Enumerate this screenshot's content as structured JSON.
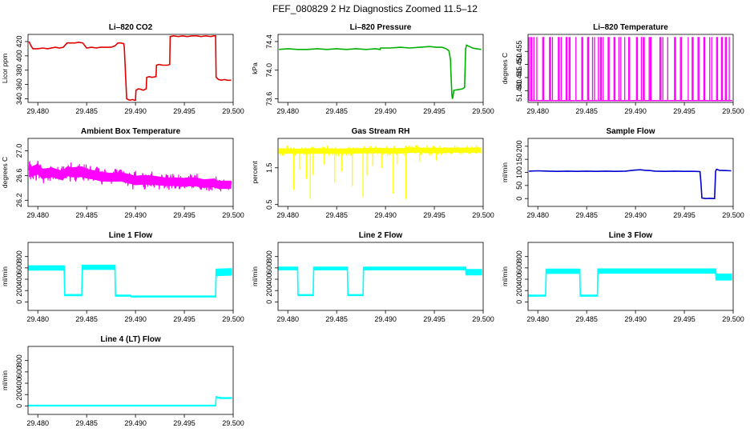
{
  "figure_title": "FEF_080829  2 Hz Diagnostics Zoomed 11.5–12",
  "colors": {
    "red": "#e00000",
    "green": "#00b000",
    "magenta": "#ff00ff",
    "yellow": "#ffff00",
    "blue": "#0000d0",
    "cyan": "#00ffff",
    "frame": "#000000"
  },
  "chart_data": [
    {
      "type": "line",
      "title": "Li–820 CO2",
      "ylabel": "Licor ppm",
      "color": "red",
      "xlim": [
        29.479,
        29.5
      ],
      "ylim": [
        335,
        430
      ],
      "xticks": [
        "29.480",
        "29.485",
        "29.490",
        "29.495",
        "29.500"
      ],
      "yticks": [
        {
          "v": 340,
          "label": "340"
        },
        {
          "v": 360,
          "label": "360"
        },
        {
          "v": 380,
          "label": "380"
        },
        {
          "v": 400,
          "label": "400"
        },
        {
          "v": 420,
          "label": "420"
        }
      ],
      "x": [
        29.4791,
        29.4793,
        29.4795,
        29.48,
        29.4805,
        29.481,
        29.4818,
        29.4822,
        29.4826,
        29.483,
        29.4838,
        29.4842,
        29.4846,
        29.485,
        29.4855,
        29.486,
        29.4864,
        29.4868,
        29.4875,
        29.4879,
        29.4882,
        29.4885,
        29.4888,
        29.48885,
        29.4891,
        29.4894,
        29.4897,
        29.4899,
        29.49,
        29.49005,
        29.4903,
        29.4906,
        29.4908,
        29.4911,
        29.49115,
        29.4914,
        29.4917,
        29.4921,
        29.49215,
        29.4924,
        29.4928,
        29.4933,
        29.4935,
        29.49355,
        29.4939,
        29.4944,
        29.4948,
        29.4953,
        29.4958,
        29.4963,
        29.4967,
        29.4972,
        29.4977,
        29.498,
        29.4982,
        29.49825,
        29.4985,
        29.4988,
        29.4991,
        29.4994,
        29.4998
      ],
      "y": [
        420,
        414,
        410,
        410,
        411,
        410,
        412,
        411,
        412,
        418,
        418,
        419,
        418,
        411,
        412,
        411,
        412,
        412,
        412,
        414,
        418,
        418,
        417,
        412,
        340,
        338,
        339,
        338,
        338,
        352,
        354,
        353,
        352,
        354,
        370,
        371,
        370,
        371,
        387,
        388,
        387,
        387,
        388,
        427,
        428,
        427,
        428,
        427,
        428,
        428,
        427,
        428,
        427,
        428,
        428,
        370,
        367,
        366,
        367,
        366,
        366
      ]
    },
    {
      "type": "line",
      "title": "Li–820 Pressure",
      "ylabel": "kPa",
      "color": "green",
      "xlim": [
        29.479,
        29.5
      ],
      "ylim": [
        73.55,
        74.5
      ],
      "xticks": [
        "29.480",
        "29.485",
        "29.490",
        "29.495",
        "29.500"
      ],
      "yticks": [
        {
          "v": 73.6,
          "label": "73.6"
        },
        {
          "v": 74.0,
          "label": "74.0"
        },
        {
          "v": 74.4,
          "label": "74.4"
        }
      ],
      "x": [
        29.4791,
        29.48,
        29.481,
        29.482,
        29.483,
        29.484,
        29.485,
        29.486,
        29.487,
        29.488,
        29.489,
        29.48945,
        29.4895,
        29.4905,
        29.4915,
        29.4925,
        29.4935,
        29.4945,
        29.4952,
        29.4958,
        29.4962,
        29.4965,
        29.49665,
        29.4967,
        29.4968,
        29.49685,
        29.4969,
        29.497,
        29.4975,
        29.4979,
        29.4981,
        29.49815,
        29.4982,
        29.4983,
        29.4986,
        29.4989,
        29.4993,
        29.4998
      ],
      "y": [
        74.29,
        74.3,
        74.29,
        74.29,
        74.3,
        74.29,
        74.3,
        74.29,
        74.3,
        74.29,
        74.3,
        74.29,
        74.31,
        74.31,
        74.32,
        74.31,
        74.32,
        74.33,
        74.32,
        74.32,
        74.3,
        74.27,
        74.15,
        73.95,
        73.65,
        73.6,
        73.62,
        73.72,
        73.73,
        73.74,
        73.76,
        74.0,
        74.3,
        74.35,
        74.33,
        74.31,
        74.3,
        74.29
      ]
    },
    {
      "type": "spikes",
      "title": "Li–820 Temperature",
      "ylabel": "degrees C",
      "color": "magenta",
      "xlim": [
        29.479,
        29.5
      ],
      "ylim": [
        51.4355,
        51.4615
      ],
      "baseline": 51.4362,
      "spike_top": 51.4605,
      "xticks": [
        "29.480",
        "29.485",
        "29.490",
        "29.495",
        "29.500"
      ],
      "yticks": [
        {
          "v": 51.44,
          "label": "51.440"
        },
        {
          "v": 51.445,
          "label": "51.445"
        },
        {
          "v": 51.45,
          "label": "51.450"
        },
        {
          "v": 51.455,
          "label": "51.455"
        }
      ],
      "spikes_x": [
        29.4791,
        29.4793,
        29.4794,
        29.4796,
        29.4799,
        29.4805,
        29.4806,
        29.4812,
        29.4813,
        29.4815,
        29.4821,
        29.4822,
        29.4824,
        29.4829,
        29.483,
        29.4832,
        29.4833,
        29.4839,
        29.4845,
        29.4846,
        29.4851,
        29.4852,
        29.4856,
        29.4858,
        29.4862,
        29.4864,
        29.4865,
        29.4867,
        29.4872,
        29.4873,
        29.4878,
        29.4879,
        29.4883,
        29.4885,
        29.4889,
        29.4893,
        29.4894,
        29.4901,
        29.4902,
        29.4906,
        29.4908,
        29.4909,
        29.4914,
        29.4915,
        29.4916,
        29.4925,
        29.4926,
        29.4928,
        29.4933,
        29.494,
        29.4941,
        29.4946,
        29.4947,
        29.4954,
        29.4958,
        29.4959,
        29.4964,
        29.4965,
        29.497,
        29.4971,
        29.4976,
        29.4978,
        29.4983,
        29.4984,
        29.4988,
        29.4989,
        29.4992,
        29.4993,
        29.4996
      ]
    },
    {
      "type": "noisy",
      "title": "Ambient Box Temperature",
      "ylabel": "degrees C",
      "color": "magenta",
      "xlim": [
        29.479,
        29.5
      ],
      "ylim": [
        26.1,
        27.2
      ],
      "xticks": [
        "29.480",
        "29.485",
        "29.490",
        "29.495",
        "29.500"
      ],
      "yticks": [
        {
          "v": 26.2,
          "label": "26.2"
        },
        {
          "v": 26.6,
          "label": "26.6"
        },
        {
          "v": 27.0,
          "label": "27.0"
        }
      ],
      "x": [
        29.4791,
        29.48,
        29.4805,
        29.4815,
        29.4825,
        29.483,
        29.4835,
        29.4845,
        29.485,
        29.486,
        29.4865,
        29.4875,
        29.4885,
        29.4895,
        29.49,
        29.491,
        29.492,
        29.493,
        29.494,
        29.495,
        29.496,
        29.497,
        29.498,
        29.4985,
        29.499,
        29.4998
      ],
      "mean": [
        26.65,
        26.7,
        26.63,
        26.65,
        26.6,
        26.67,
        26.65,
        26.66,
        26.63,
        26.6,
        26.58,
        26.57,
        26.58,
        26.54,
        26.52,
        26.53,
        26.52,
        26.5,
        26.5,
        26.49,
        26.5,
        26.47,
        26.48,
        26.45,
        26.45,
        26.45
      ],
      "band_low": [
        26.5,
        26.5,
        26.45,
        26.45,
        26.45,
        26.5,
        26.45,
        26.45,
        26.45,
        26.4,
        26.4,
        26.4,
        26.4,
        26.35,
        26.35,
        26.35,
        26.35,
        26.35,
        26.35,
        26.33,
        26.33,
        26.3,
        26.3,
        26.3,
        26.3,
        26.3
      ],
      "band_high": [
        26.85,
        26.9,
        26.82,
        26.8,
        26.8,
        26.85,
        26.82,
        26.85,
        26.8,
        26.75,
        26.75,
        26.73,
        26.75,
        26.7,
        26.7,
        26.7,
        26.68,
        26.67,
        26.67,
        26.65,
        26.66,
        26.62,
        26.62,
        26.6,
        26.6,
        26.6
      ]
    },
    {
      "type": "noisy",
      "title": "Gas Stream RH",
      "ylabel": "percent",
      "color": "yellow",
      "xlim": [
        29.479,
        29.5
      ],
      "ylim": [
        0.45,
        2.3
      ],
      "xticks": [
        "29.480",
        "29.485",
        "29.490",
        "29.495",
        "29.500"
      ],
      "yticks": [
        {
          "v": 0.5,
          "label": "0.5"
        },
        {
          "v": 1.5,
          "label": "1.5"
        }
      ],
      "x": [
        29.4791,
        29.481,
        29.483,
        29.485,
        29.487,
        29.489,
        29.491,
        29.493,
        29.495,
        29.497,
        29.4998
      ],
      "mean": [
        1.96,
        1.95,
        1.96,
        1.95,
        1.96,
        1.97,
        1.96,
        1.98,
        1.97,
        1.98,
        1.98
      ],
      "band_low": [
        1.78,
        1.8,
        1.78,
        1.8,
        1.8,
        1.8,
        1.8,
        1.82,
        1.8,
        1.82,
        1.82
      ],
      "band_high": [
        2.12,
        2.1,
        2.12,
        2.12,
        2.12,
        2.13,
        2.12,
        2.14,
        2.13,
        2.14,
        2.14
      ],
      "dips": [
        {
          "x": 29.4806,
          "y": 0.9
        },
        {
          "x": 29.4812,
          "y": 1.45
        },
        {
          "x": 29.4819,
          "y": 1.2
        },
        {
          "x": 29.4823,
          "y": 0.65
        },
        {
          "x": 29.4826,
          "y": 1.3
        },
        {
          "x": 29.4837,
          "y": 1.6
        },
        {
          "x": 29.4848,
          "y": 1.1
        },
        {
          "x": 29.4855,
          "y": 1.4
        },
        {
          "x": 29.4866,
          "y": 1.0
        },
        {
          "x": 29.4877,
          "y": 0.7
        },
        {
          "x": 29.4881,
          "y": 1.3
        },
        {
          "x": 29.4887,
          "y": 1.55
        },
        {
          "x": 29.4896,
          "y": 1.5
        },
        {
          "x": 29.4908,
          "y": 0.8
        },
        {
          "x": 29.4912,
          "y": 1.6
        },
        {
          "x": 29.4921,
          "y": 0.65
        },
        {
          "x": 29.4935,
          "y": 1.65
        },
        {
          "x": 29.4952,
          "y": 1.7
        }
      ]
    },
    {
      "type": "line",
      "title": "Sample Flow",
      "ylabel": "ml/min",
      "color": "blue",
      "xlim": [
        29.479,
        29.5
      ],
      "ylim": [
        -30,
        230
      ],
      "xticks": [
        "29.480",
        "29.485",
        "29.490",
        "29.495",
        "29.500"
      ],
      "yticks": [
        {
          "v": 0,
          "label": "0"
        },
        {
          "v": 50,
          "label": "50"
        },
        {
          "v": 100,
          "label": "100"
        },
        {
          "v": 150,
          "label": "150"
        },
        {
          "v": 200,
          "label": "200"
        }
      ],
      "x": [
        29.4791,
        29.48,
        29.481,
        29.482,
        29.483,
        29.484,
        29.485,
        29.486,
        29.487,
        29.488,
        29.489,
        29.4895,
        29.49,
        29.4905,
        29.491,
        29.4915,
        29.492,
        29.493,
        29.494,
        29.495,
        29.496,
        29.4966,
        29.4967,
        29.4968,
        29.4972,
        29.4976,
        29.4981,
        29.4982,
        29.4983,
        29.4986,
        29.4992,
        29.4998
      ],
      "y": [
        105,
        106,
        105,
        104,
        105,
        104,
        105,
        104,
        105,
        104,
        105,
        107,
        109,
        110,
        108,
        107,
        105,
        104,
        105,
        104,
        104,
        103,
        60,
        2,
        0,
        1,
        0,
        105,
        112,
        108,
        107,
        106
      ]
    },
    {
      "type": "band",
      "title": "Line 1 Flow",
      "ylabel": "ml/min",
      "color": "cyan",
      "xlim": [
        29.479,
        29.5
      ],
      "ylim": [
        -150,
        1050
      ],
      "xticks": [
        "29.480",
        "29.485",
        "29.490",
        "29.495",
        "29.500"
      ],
      "yticks": [
        {
          "v": 0,
          "label": "0"
        },
        {
          "v": 200,
          "label": "200"
        },
        {
          "v": 400,
          "label": "400"
        },
        {
          "v": 600,
          "label": "600"
        },
        {
          "v": 800,
          "label": "800"
        }
      ],
      "x": [
        29.4791,
        29.4827,
        29.48275,
        29.4845,
        29.48455,
        29.4879,
        29.48795,
        29.4895,
        29.48955,
        29.4982,
        29.49825,
        29.4998
      ],
      "y": [
        600,
        600,
        120,
        120,
        610,
        610,
        110,
        110,
        95,
        95,
        520,
        530
      ],
      "w": [
        35,
        35,
        8,
        8,
        35,
        35,
        8,
        8,
        6,
        6,
        55,
        55
      ]
    },
    {
      "type": "band",
      "title": "Line 2 Flow",
      "ylabel": "ml/min",
      "color": "cyan",
      "xlim": [
        29.479,
        29.5
      ],
      "ylim": [
        -150,
        1050
      ],
      "xticks": [
        "29.480",
        "29.485",
        "29.490",
        "29.495",
        "29.500"
      ],
      "yticks": [
        {
          "v": 0,
          "label": "0"
        },
        {
          "v": 200,
          "label": "200"
        },
        {
          "v": 400,
          "label": "400"
        },
        {
          "v": 600,
          "label": "600"
        },
        {
          "v": 800,
          "label": "800"
        }
      ],
      "x": [
        29.4791,
        29.481,
        29.48105,
        29.4826,
        29.48265,
        29.4861,
        29.48615,
        29.4877,
        29.48775,
        29.4982,
        29.49825,
        29.4998
      ],
      "y": [
        590,
        590,
        120,
        120,
        590,
        590,
        120,
        120,
        590,
        590,
        525,
        525
      ],
      "w": [
        22,
        22,
        6,
        6,
        22,
        22,
        6,
        6,
        22,
        22,
        45,
        45
      ]
    },
    {
      "type": "band",
      "title": "Line 3 Flow",
      "ylabel": "ml/min",
      "color": "cyan",
      "xlim": [
        29.479,
        29.5
      ],
      "ylim": [
        -150,
        1050
      ],
      "xticks": [
        "29.480",
        "29.485",
        "29.490",
        "29.495",
        "29.500"
      ],
      "yticks": [
        {
          "v": 0,
          "label": "0"
        },
        {
          "v": 200,
          "label": "200"
        },
        {
          "v": 400,
          "label": "400"
        },
        {
          "v": 600,
          "label": "600"
        },
        {
          "v": 800,
          "label": "800"
        }
      ],
      "x": [
        29.4791,
        29.4808,
        29.48085,
        29.4843,
        29.48435,
        29.4861,
        29.48615,
        29.4982,
        29.49825,
        29.4998
      ],
      "y": [
        110,
        110,
        540,
        540,
        110,
        110,
        545,
        545,
        440,
        440
      ],
      "w": [
        8,
        8,
        35,
        35,
        8,
        8,
        35,
        35,
        50,
        50
      ]
    },
    {
      "type": "band",
      "title": "Line 4 (LT) Flow",
      "ylabel": "ml/min",
      "color": "cyan",
      "xlim": [
        29.479,
        29.5
      ],
      "ylim": [
        -150,
        1050
      ],
      "xticks": [
        "29.480",
        "29.485",
        "29.490",
        "29.495",
        "29.500"
      ],
      "yticks": [
        {
          "v": 0,
          "label": "0"
        },
        {
          "v": 200,
          "label": "200"
        },
        {
          "v": 400,
          "label": "400"
        },
        {
          "v": 600,
          "label": "600"
        },
        {
          "v": 800,
          "label": "800"
        }
      ],
      "x": [
        29.4791,
        29.4982,
        29.49825,
        29.4987,
        29.4998
      ],
      "y": [
        5,
        5,
        155,
        140,
        138
      ],
      "w": [
        4,
        4,
        6,
        6,
        6
      ]
    }
  ]
}
